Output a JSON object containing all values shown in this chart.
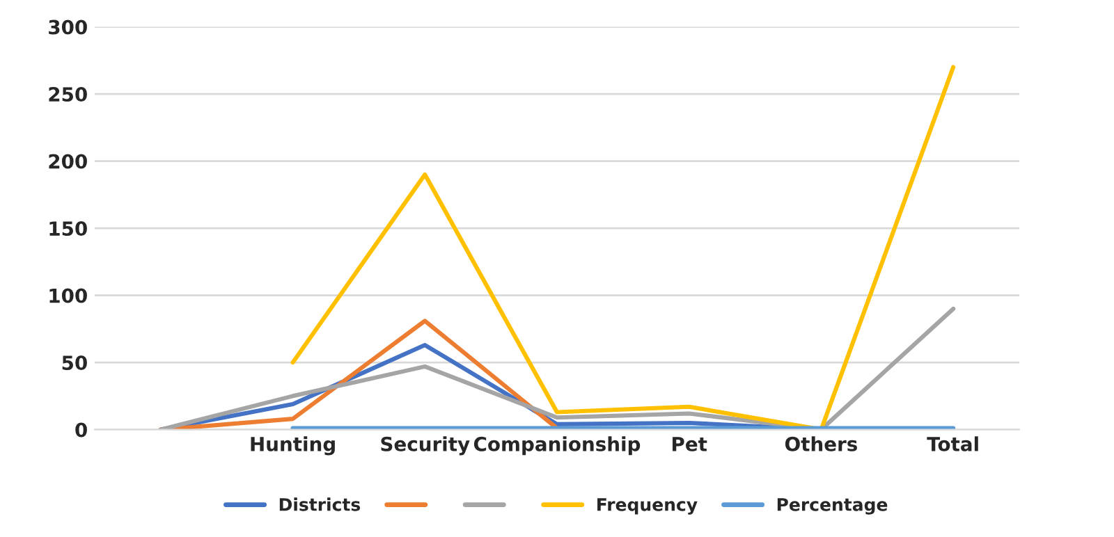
{
  "chart_data": {
    "type": "line",
    "categories": [
      null,
      "Hunting",
      "Security",
      "Companionship",
      "Pet",
      "Others",
      "Total"
    ],
    "series": [
      {
        "name": "Districts",
        "color": "#4472c4",
        "values": [
          0,
          19,
          63,
          4,
          5,
          0,
          null
        ]
      },
      {
        "color": "#ed7d31",
        "values": [
          0,
          8,
          81,
          1,
          null,
          null,
          null
        ]
      },
      {
        "color": "#a5a5a5",
        "values": [
          0,
          25,
          47,
          9,
          12,
          0,
          90
        ]
      },
      {
        "name": "Frequency",
        "color": "#ffc000",
        "values": [
          null,
          50,
          190,
          13,
          17,
          0,
          270
        ]
      },
      {
        "name": "Percentage",
        "color": "#5b9bd5",
        "values": [
          null,
          1,
          1,
          1,
          1,
          1,
          1
        ]
      }
    ],
    "ylim": [
      0,
      300
    ],
    "yticks": [
      0,
      50,
      100,
      150,
      200,
      250,
      300
    ],
    "grid": "y",
    "legend": "bottom",
    "marker": "none",
    "line_style": "solid"
  }
}
